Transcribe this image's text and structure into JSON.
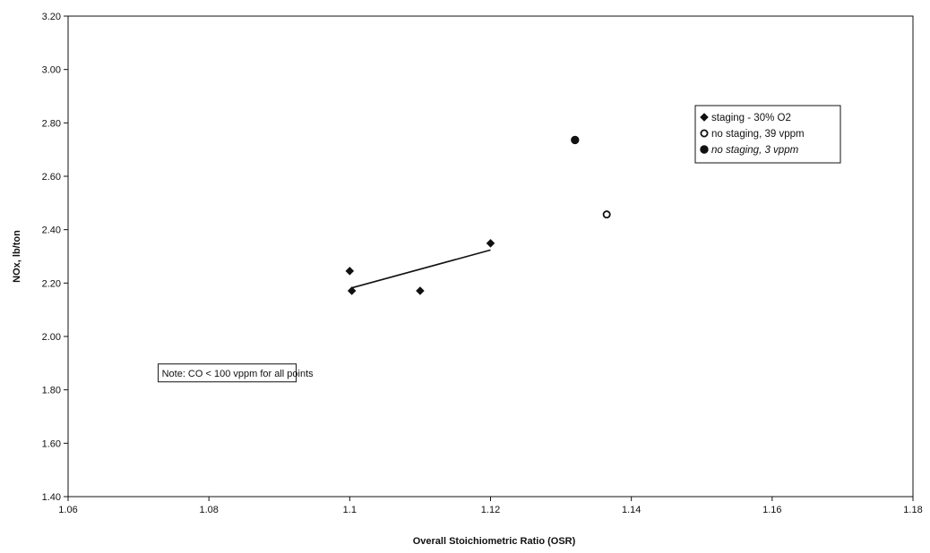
{
  "chart_data": {
    "type": "scatter",
    "title": "",
    "xlabel": "Overall Stoichiometric Ratio (OSR)",
    "ylabel": "NOx, lb/ton",
    "xlim": [
      1.06,
      1.18
    ],
    "ylim": [
      1.4,
      3.2
    ],
    "x_ticks": [
      "1.06",
      "1.08",
      "1.1",
      "1.12",
      "1.14",
      "1.16",
      "1.18"
    ],
    "y_ticks": [
      "1.40",
      "1.60",
      "1.80",
      "2.00",
      "2.20",
      "2.40",
      "2.60",
      "2.80",
      "3.00",
      "3.20"
    ],
    "grid": false,
    "legend_position": "top-right",
    "series": [
      {
        "name": "staging - 30% O2",
        "marker": "diamond",
        "color": "#111111",
        "x": [
          1.1,
          1.1003,
          1.11,
          1.12
        ],
        "y": [
          2.245,
          2.171,
          2.171,
          2.349
        ]
      },
      {
        "name": "no staging, 39 vppm",
        "marker": "open-circle",
        "color": "#111111",
        "x": [
          1.1365
        ],
        "y": [
          2.457
        ]
      },
      {
        "name": "no staging, 3 vppm",
        "marker": "filled-circle",
        "color": "#111111",
        "x": [
          1.132
        ],
        "y": [
          2.736
        ]
      }
    ],
    "trendline": {
      "series": "staging - 30% O2",
      "x": [
        1.1003,
        1.12
      ],
      "y": [
        2.182,
        2.324
      ]
    },
    "annotations": [
      {
        "text": "Note: CO < 100 vppm for all points",
        "x": 1.0728,
        "y": 1.85
      }
    ]
  }
}
